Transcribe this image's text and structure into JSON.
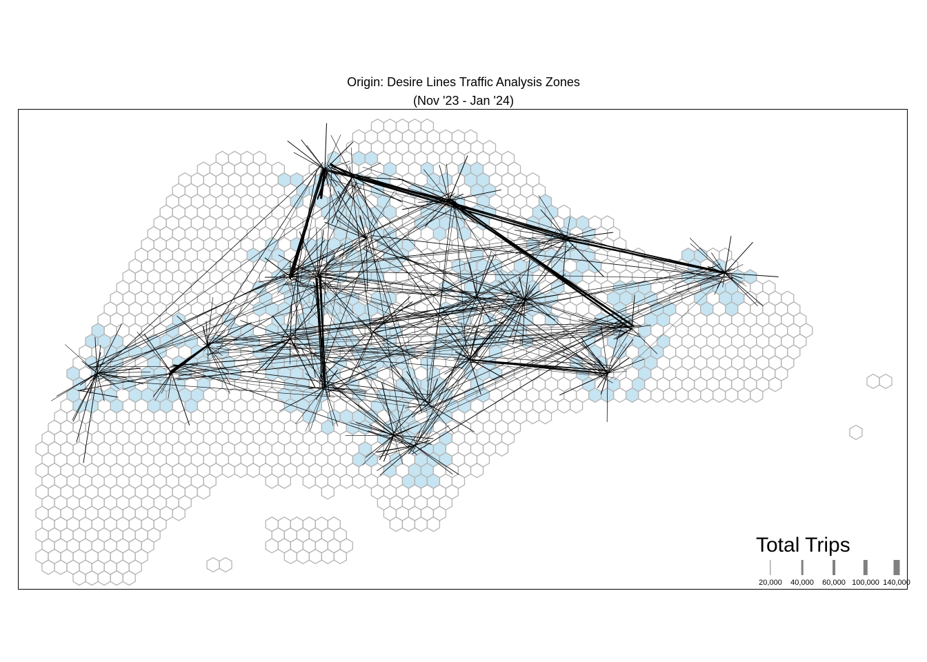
{
  "title": {
    "line1": "Origin: Desire Lines Traffic Analysis Zones",
    "line2": "(Nov '23 - Jan '24)"
  },
  "map": {
    "hex_fill_active": "#c6e4f2",
    "hex_stroke": "#b3b3b3",
    "line_color": "#000000"
  },
  "legend": {
    "title": "Total Trips",
    "bar_color": "#808080",
    "items": [
      {
        "label": "20,000",
        "value": 20000
      },
      {
        "label": "40,000",
        "value": 40000
      },
      {
        "label": "60,000",
        "value": 60000
      },
      {
        "label": "100,000",
        "value": 100000
      },
      {
        "label": "140,000",
        "value": 140000
      }
    ]
  }
}
